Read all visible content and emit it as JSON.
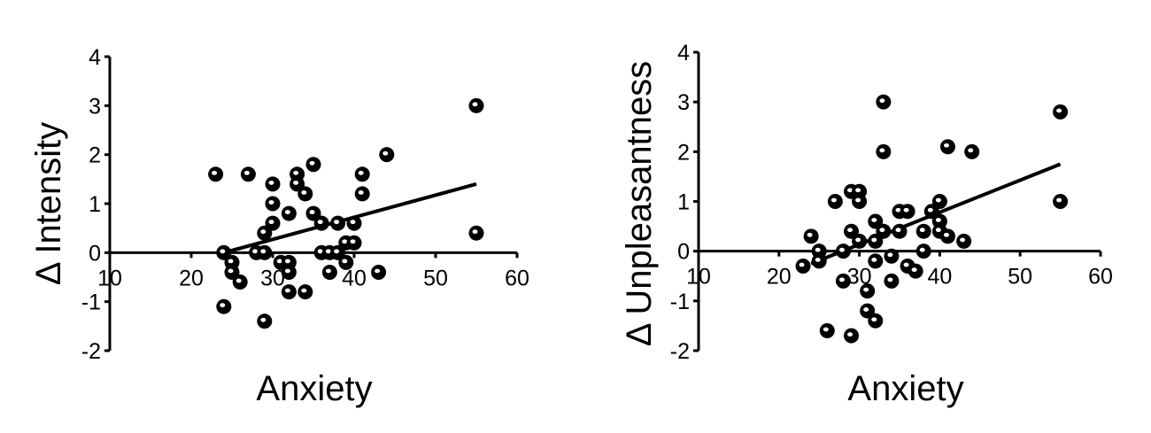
{
  "chart_data": [
    {
      "type": "scatter",
      "xlabel": "Anxiety",
      "ylabel": "Δ Intensity",
      "xlim": [
        10,
        60
      ],
      "ylim": [
        -2,
        4
      ],
      "xticks": [
        "10",
        "20",
        "30",
        "40",
        "50",
        "60"
      ],
      "yticks": [
        "-2",
        "-1",
        "0",
        "1",
        "2",
        "3",
        "4"
      ],
      "points": [
        {
          "x": 23,
          "y": 1.6
        },
        {
          "x": 27,
          "y": 1.6
        },
        {
          "x": 24,
          "y": -1.1
        },
        {
          "x": 24,
          "y": 0.0
        },
        {
          "x": 25,
          "y": -0.2
        },
        {
          "x": 25,
          "y": -0.4
        },
        {
          "x": 26,
          "y": -0.6
        },
        {
          "x": 28,
          "y": 0.0
        },
        {
          "x": 29,
          "y": 0.0
        },
        {
          "x": 29,
          "y": 0.4
        },
        {
          "x": 29,
          "y": -1.4
        },
        {
          "x": 30,
          "y": 1.4
        },
        {
          "x": 30,
          "y": 1.0
        },
        {
          "x": 30,
          "y": 0.6
        },
        {
          "x": 31,
          "y": -0.2
        },
        {
          "x": 32,
          "y": -0.2
        },
        {
          "x": 32,
          "y": -0.4
        },
        {
          "x": 32,
          "y": -0.8
        },
        {
          "x": 32,
          "y": 0.8
        },
        {
          "x": 33,
          "y": 1.6
        },
        {
          "x": 33,
          "y": 1.4
        },
        {
          "x": 34,
          "y": 1.2
        },
        {
          "x": 34,
          "y": -0.8
        },
        {
          "x": 35,
          "y": 1.8
        },
        {
          "x": 35,
          "y": 0.8
        },
        {
          "x": 36,
          "y": 0.6
        },
        {
          "x": 36,
          "y": 0.0
        },
        {
          "x": 37,
          "y": 0.0
        },
        {
          "x": 37,
          "y": -0.4
        },
        {
          "x": 38,
          "y": 0.6
        },
        {
          "x": 38,
          "y": 0.0
        },
        {
          "x": 39,
          "y": 0.2
        },
        {
          "x": 39,
          "y": -0.2
        },
        {
          "x": 40,
          "y": 0.6
        },
        {
          "x": 40,
          "y": 0.2
        },
        {
          "x": 41,
          "y": 1.6
        },
        {
          "x": 41,
          "y": 1.2
        },
        {
          "x": 43,
          "y": -0.4
        },
        {
          "x": 44,
          "y": 2.0
        },
        {
          "x": 55,
          "y": 3.0
        },
        {
          "x": 55,
          "y": 0.4
        }
      ],
      "fit_line": {
        "x": [
          24,
          55
        ],
        "y": [
          0.0,
          1.4
        ]
      }
    },
    {
      "type": "scatter",
      "xlabel": "Anxiety",
      "ylabel": "Δ Unpleasantness",
      "xlim": [
        10,
        60
      ],
      "ylim": [
        -2,
        4
      ],
      "xticks": [
        "10",
        "20",
        "30",
        "40",
        "50",
        "60"
      ],
      "yticks": [
        "-2",
        "-1",
        "0",
        "1",
        "2",
        "3",
        "4"
      ],
      "points": [
        {
          "x": 23,
          "y": -0.3
        },
        {
          "x": 24,
          "y": 0.3
        },
        {
          "x": 25,
          "y": 0.0
        },
        {
          "x": 25,
          "y": -0.2
        },
        {
          "x": 26,
          "y": -1.6
        },
        {
          "x": 27,
          "y": 1.0
        },
        {
          "x": 28,
          "y": -0.6
        },
        {
          "x": 28,
          "y": 0.0
        },
        {
          "x": 29,
          "y": 1.2
        },
        {
          "x": 29,
          "y": 0.4
        },
        {
          "x": 29,
          "y": -1.7
        },
        {
          "x": 30,
          "y": 1.2
        },
        {
          "x": 30,
          "y": 1.0
        },
        {
          "x": 30,
          "y": 0.2
        },
        {
          "x": 31,
          "y": -0.8
        },
        {
          "x": 31,
          "y": -1.2
        },
        {
          "x": 32,
          "y": 0.6
        },
        {
          "x": 32,
          "y": 0.2
        },
        {
          "x": 32,
          "y": -0.2
        },
        {
          "x": 32,
          "y": -1.4
        },
        {
          "x": 33,
          "y": 3.0
        },
        {
          "x": 33,
          "y": 2.0
        },
        {
          "x": 33,
          "y": 0.4
        },
        {
          "x": 34,
          "y": -0.1
        },
        {
          "x": 34,
          "y": -0.6
        },
        {
          "x": 35,
          "y": 0.8
        },
        {
          "x": 35,
          "y": 0.4
        },
        {
          "x": 36,
          "y": 0.8
        },
        {
          "x": 36,
          "y": -0.3
        },
        {
          "x": 37,
          "y": -0.4
        },
        {
          "x": 38,
          "y": 0.4
        },
        {
          "x": 38,
          "y": 0.0
        },
        {
          "x": 39,
          "y": 0.8
        },
        {
          "x": 40,
          "y": 1.0
        },
        {
          "x": 40,
          "y": 0.6
        },
        {
          "x": 40,
          "y": 0.4
        },
        {
          "x": 41,
          "y": 2.1
        },
        {
          "x": 41,
          "y": 0.3
        },
        {
          "x": 43,
          "y": 0.2
        },
        {
          "x": 44,
          "y": 2.0
        },
        {
          "x": 55,
          "y": 2.8
        },
        {
          "x": 55,
          "y": 1.0
        }
      ],
      "fit_line": {
        "x": [
          24,
          55
        ],
        "y": [
          -0.25,
          1.75
        ]
      }
    }
  ]
}
